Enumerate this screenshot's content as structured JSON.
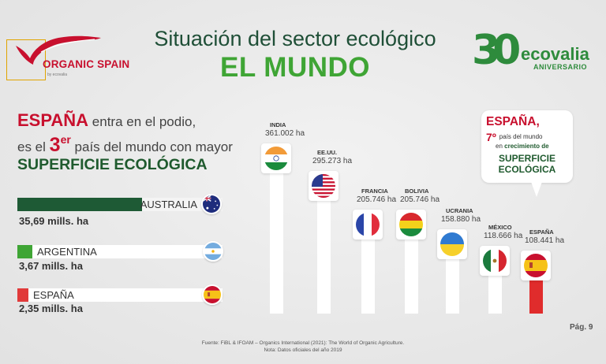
{
  "header": {
    "title_line1": "Situación del sector ecológico",
    "title_line2": "EL MUNDO"
  },
  "logos": {
    "left_brand": "ORGANIC SPAIN",
    "left_by": "by ecovalia",
    "right_number": "30",
    "right_brand": "ecovalia",
    "right_sub": "ANIVERSARIO"
  },
  "intro": {
    "line1_highlight": "ESPAÑA",
    "line1_rest": "entra en el podio,",
    "line2_start": "es el",
    "line2_rank": "3",
    "line2_sup": "er",
    "line2_rest": "país del mundo con mayor",
    "line3": "SUPERFICIE ECOLÓGICA"
  },
  "callout": {
    "line1": "ESPAÑA,",
    "rank": "7º",
    "rank_tail": "país del mundo",
    "line3_start": "en",
    "line3_bold": "crecimiento de",
    "line4": "SUPERFICIE",
    "line5": "ECOLÓGICA"
  },
  "footer": {
    "page": "Pág. 9",
    "source": "Fuente: FiBL & IFOAM – Organics International (2021): The World of Organic Agriculture.",
    "note": "Nota: Datos oficiales del año 2019"
  },
  "colors": {
    "accent_red": "#c8102e",
    "accent_green": "#3fa535",
    "dark_green": "#1f5a2e",
    "bar_white": "#ffffff"
  },
  "chart_data": [
    {
      "type": "bar",
      "orientation": "horizontal",
      "categories": [
        "AUSTRALIA",
        "ARGENTINA",
        "ESPAÑA"
      ],
      "values": [
        35.69,
        3.67,
        2.35
      ],
      "value_labels": [
        "35,69 mills. ha",
        "3,67  mills. ha",
        "2,35 mills. ha"
      ],
      "bar_colors": [
        "#1e5a35",
        "#3fa535",
        "#e13a3a"
      ],
      "flags": [
        "flag-australia-icon",
        "flag-argentina-icon",
        "flag-spain-icon"
      ]
    },
    {
      "type": "bar",
      "orientation": "vertical",
      "categories": [
        "INDIA",
        "EE.UU.",
        "FRANCIA",
        "BOLIVIA",
        "UCRANIA",
        "MÉXICO",
        "ESPAÑA"
      ],
      "values": [
        361002,
        295273,
        205746,
        205746,
        158880,
        118666,
        108441
      ],
      "value_labels": [
        "361.002 ha",
        "295.273 ha",
        "205.746 ha",
        "205.746 ha",
        "158.880 ha",
        "118.666 ha",
        "108.441 ha"
      ],
      "highlight": "ESPAÑA",
      "flags": [
        "flag-india-icon",
        "flag-usa-icon",
        "flag-france-icon",
        "flag-bolivia-icon",
        "flag-ukraine-icon",
        "flag-mexico-icon",
        "flag-spain-icon"
      ]
    }
  ]
}
